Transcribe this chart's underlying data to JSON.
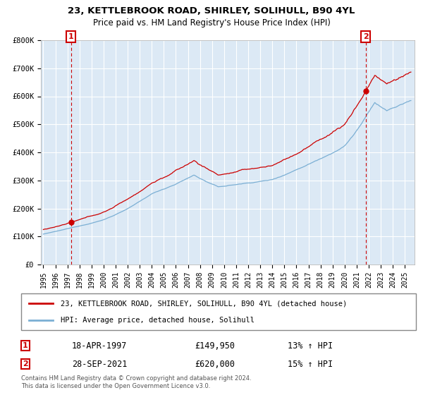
{
  "title_line1": "23, KETTLEBROOK ROAD, SHIRLEY, SOLIHULL, B90 4YL",
  "title_line2": "Price paid vs. HM Land Registry's House Price Index (HPI)",
  "ylim": [
    0,
    800000
  ],
  "yticks": [
    0,
    100000,
    200000,
    300000,
    400000,
    500000,
    600000,
    700000,
    800000
  ],
  "ytick_labels": [
    "£0",
    "£100K",
    "£200K",
    "£300K",
    "£400K",
    "£500K",
    "£600K",
    "£700K",
    "£800K"
  ],
  "sale1_date_num": 1997.29,
  "sale1_price": 149950,
  "sale1_date_str": "18-APR-1997",
  "sale1_price_str": "£149,950",
  "sale1_hpi_str": "13% ↑ HPI",
  "sale2_date_num": 2021.74,
  "sale2_price": 620000,
  "sale2_date_str": "28-SEP-2021",
  "sale2_price_str": "£620,000",
  "sale2_hpi_str": "15% ↑ HPI",
  "red_color": "#cc0000",
  "blue_color": "#7bafd4",
  "chart_bg": "#dce9f5",
  "legend_label_red": "23, KETTLEBROOK ROAD, SHIRLEY, SOLIHULL, B90 4YL (detached house)",
  "legend_label_blue": "HPI: Average price, detached house, Solihull",
  "copyright_text": "Contains HM Land Registry data © Crown copyright and database right 2024.\nThis data is licensed under the Open Government Licence v3.0.",
  "grid_color": "#ffffff",
  "xlim_start": 1994.8,
  "xlim_end": 2025.8
}
